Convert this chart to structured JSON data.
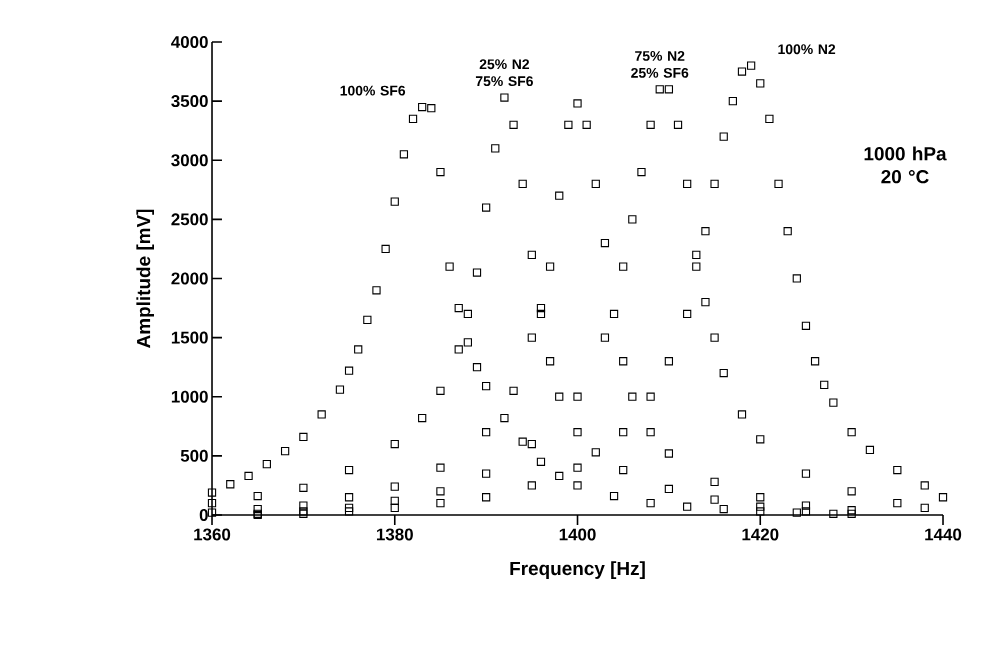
{
  "chart_data": {
    "type": "scatter",
    "xlabel": "Frequency  [Hz]",
    "ylabel": "Amplitude  [mV]",
    "xlim": [
      1360,
      1440
    ],
    "xticks": [
      1360,
      1380,
      1400,
      1420,
      1440
    ],
    "ylim": [
      0,
      4000
    ],
    "yticks": [
      0,
      500,
      1000,
      1500,
      2000,
      2500,
      3000,
      3500,
      4000
    ],
    "marker": "square",
    "grid": false,
    "annotations": [
      "1000 hPa 20 °C"
    ],
    "series": [
      {
        "name": "100% SF6",
        "color": "#000000",
        "x": [
          1360,
          1362,
          1364,
          1366,
          1368,
          1370,
          1372,
          1374,
          1375,
          1376,
          1377,
          1378,
          1379,
          1380,
          1381,
          1382,
          1383,
          1384,
          1385,
          1386,
          1387,
          1388,
          1389,
          1390,
          1392,
          1394,
          1396,
          1398,
          1400,
          1404,
          1408,
          1412,
          1416,
          1420,
          1424,
          1428
        ],
        "values": [
          190,
          260,
          330,
          430,
          540,
          660,
          850,
          1060,
          1220,
          1400,
          1650,
          1900,
          2250,
          2650,
          3050,
          3350,
          3450,
          3440,
          2900,
          2100,
          1750,
          1460,
          1250,
          1090,
          820,
          620,
          450,
          330,
          250,
          160,
          100,
          70,
          50,
          30,
          20,
          10
        ]
      },
      {
        "name": "25% N2 75% SF6",
        "color": "#000000",
        "x": [
          1360,
          1365,
          1370,
          1375,
          1380,
          1383,
          1385,
          1387,
          1388,
          1389,
          1390,
          1391,
          1392,
          1393,
          1394,
          1395,
          1396,
          1397,
          1398,
          1400,
          1402,
          1405,
          1410,
          1415,
          1420,
          1425,
          1430
        ],
        "values": [
          100,
          160,
          230,
          380,
          600,
          820,
          1050,
          1400,
          1700,
          2050,
          2600,
          3100,
          3530,
          3300,
          2800,
          2200,
          1700,
          1300,
          1000,
          700,
          530,
          380,
          220,
          130,
          70,
          30,
          10
        ]
      },
      {
        "color": "#000000",
        "x": [
          1360,
          1365,
          1370,
          1375,
          1380,
          1385,
          1390,
          1393,
          1395,
          1396,
          1397,
          1398,
          1399,
          1400,
          1401,
          1402,
          1403,
          1404,
          1405,
          1406,
          1408,
          1410,
          1415,
          1420,
          1425,
          1430
        ],
        "values": [
          20,
          50,
          80,
          150,
          240,
          400,
          700,
          1050,
          1500,
          1750,
          2100,
          2700,
          3300,
          3480,
          3300,
          2800,
          2300,
          1700,
          1300,
          1000,
          700,
          520,
          280,
          150,
          80,
          40
        ]
      },
      {
        "name": "75% N2 25% SF6",
        "color": "#000000",
        "x": [
          1365,
          1370,
          1375,
          1380,
          1385,
          1390,
          1395,
          1400,
          1403,
          1405,
          1406,
          1407,
          1408,
          1409,
          1410,
          1411,
          1412,
          1413,
          1414,
          1415,
          1416,
          1418,
          1420,
          1425,
          1430,
          1435,
          1438
        ],
        "values": [
          10,
          30,
          60,
          120,
          200,
          350,
          600,
          1000,
          1500,
          2100,
          2500,
          2900,
          3300,
          3600,
          3600,
          3300,
          2800,
          2200,
          1800,
          1500,
          1200,
          850,
          640,
          350,
          200,
          100,
          60
        ]
      },
      {
        "name": "100% N2",
        "color": "#000000",
        "x": [
          1365,
          1370,
          1375,
          1380,
          1385,
          1390,
          1395,
          1400,
          1405,
          1408,
          1410,
          1412,
          1413,
          1414,
          1415,
          1416,
          1417,
          1418,
          1419,
          1420,
          1421,
          1422,
          1423,
          1424,
          1425,
          1426,
          1427,
          1428,
          1430,
          1432,
          1435,
          1438,
          1440
        ],
        "values": [
          0,
          10,
          30,
          60,
          100,
          150,
          250,
          400,
          700,
          1000,
          1300,
          1700,
          2100,
          2400,
          2800,
          3200,
          3500,
          3750,
          3800,
          3650,
          3350,
          2800,
          2400,
          2000,
          1600,
          1300,
          1100,
          950,
          700,
          550,
          380,
          250,
          150
        ]
      }
    ]
  }
}
